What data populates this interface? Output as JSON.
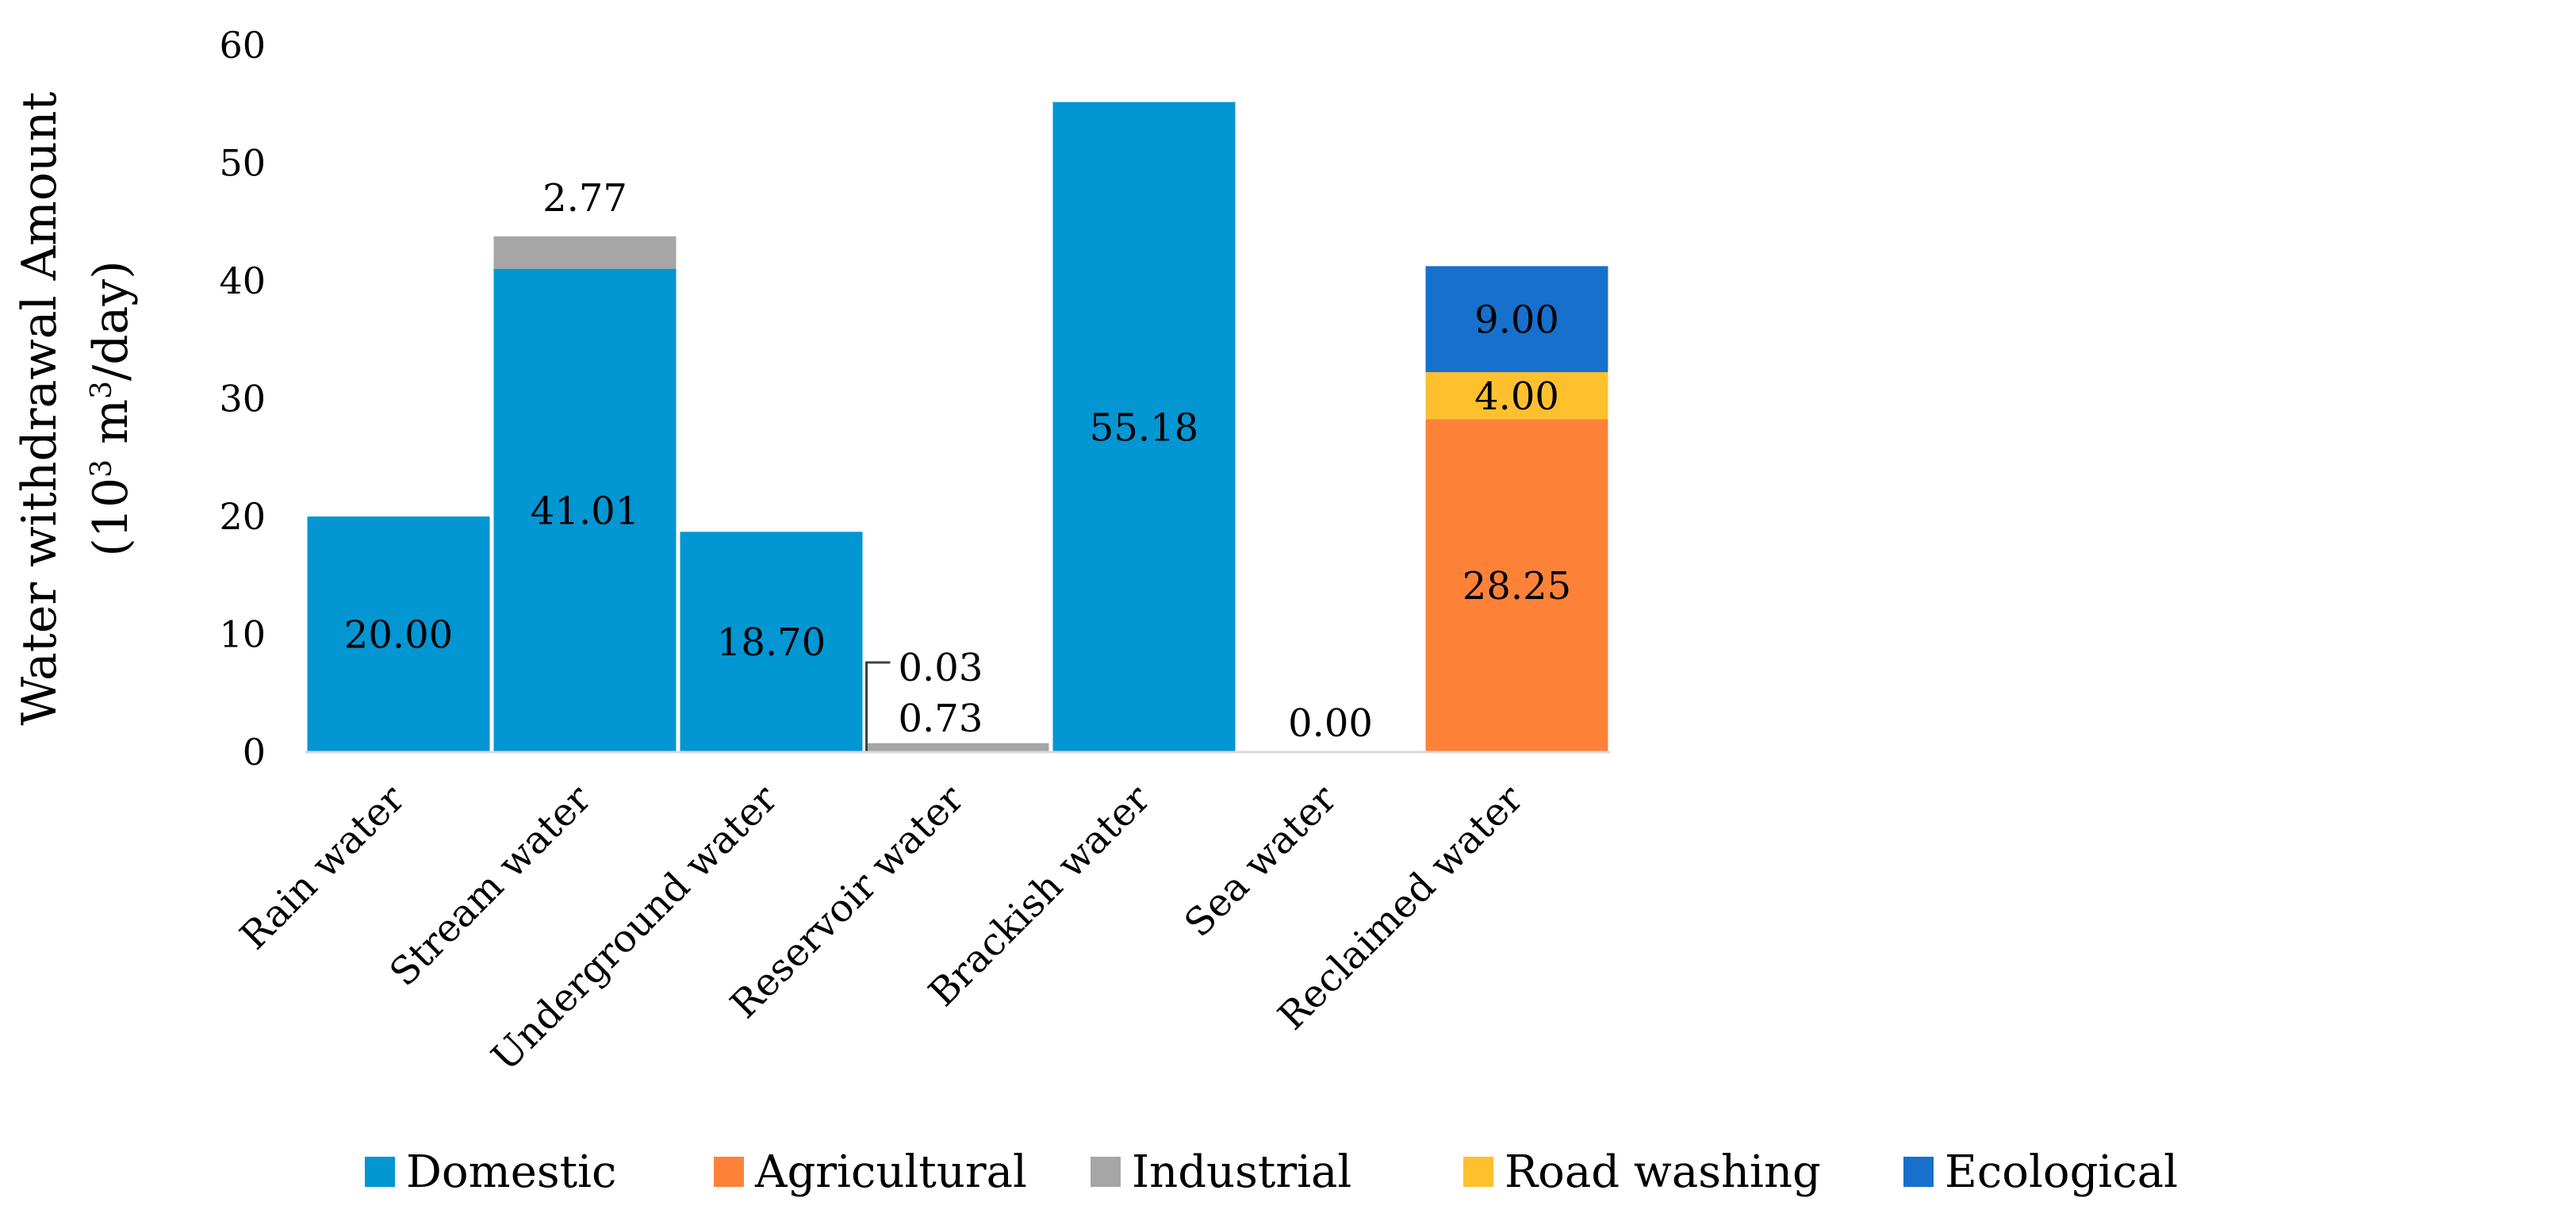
{
  "chart_data": {
    "type": "bar",
    "stacked": true,
    "title": "",
    "xlabel": "",
    "ylabel_line1": "Water withdrawal Amount",
    "ylabel_line2_prefix": "(10",
    "ylabel_line2_sup": "3",
    "ylabel_line2_mid": " m",
    "ylabel_line2_sup2": "3",
    "ylabel_line2_suffix": "/day)",
    "ylim": [
      0,
      60
    ],
    "yticks": [
      "0",
      "10",
      "20",
      "30",
      "40",
      "50",
      "60"
    ],
    "ytick_values": [
      0,
      10,
      20,
      30,
      40,
      50,
      60
    ],
    "grid": false,
    "legend_position": "bottom",
    "categories": [
      "Rain water",
      "Stream water",
      "Underground water",
      "Reservoir water",
      "Brackish water",
      "Sea water",
      "Reclaimed water"
    ],
    "series": [
      {
        "name": "Domestic",
        "color": "#0296D3",
        "values": [
          20.0,
          41.01,
          18.7,
          0.03,
          55.18,
          0.0,
          0.0
        ]
      },
      {
        "name": "Agricultural",
        "color": "#FD8238",
        "values": [
          0.0,
          0.0,
          0.0,
          0.0,
          0.0,
          0.0,
          28.25
        ]
      },
      {
        "name": "Industrial",
        "color": "#A6A6A6",
        "values": [
          0.0,
          2.77,
          0.0,
          0.73,
          0.0,
          0.0,
          0.0
        ]
      },
      {
        "name": "Road washing",
        "color": "#FFC02E",
        "values": [
          0.0,
          0.0,
          0.0,
          0.0,
          0.0,
          0.0,
          4.0
        ]
      },
      {
        "name": "Ecological",
        "color": "#1670CC",
        "values": [
          0.0,
          0.0,
          0.0,
          0.0,
          0.0,
          0.0,
          9.0
        ]
      }
    ],
    "data_labels": [
      {
        "category": "Rain water",
        "series": "Domestic",
        "text": "20.00"
      },
      {
        "category": "Stream water",
        "series": "Domestic",
        "text": "41.01"
      },
      {
        "category": "Stream water",
        "series": "Industrial",
        "text": "2.77"
      },
      {
        "category": "Underground water",
        "series": "Domestic",
        "text": "18.70"
      },
      {
        "category": "Reservoir water",
        "series": "Domestic",
        "text": "0.03"
      },
      {
        "category": "Reservoir water",
        "series": "Industrial",
        "text": "0.73"
      },
      {
        "category": "Brackish water",
        "series": "Domestic",
        "text": "55.18"
      },
      {
        "category": "Sea water",
        "series": "Domestic",
        "text": "0.00"
      },
      {
        "category": "Reclaimed water",
        "series": "Agricultural",
        "text": "28.25"
      },
      {
        "category": "Reclaimed water",
        "series": "Road washing",
        "text": "4.00"
      },
      {
        "category": "Reclaimed water",
        "series": "Ecological",
        "text": "9.00"
      }
    ]
  }
}
